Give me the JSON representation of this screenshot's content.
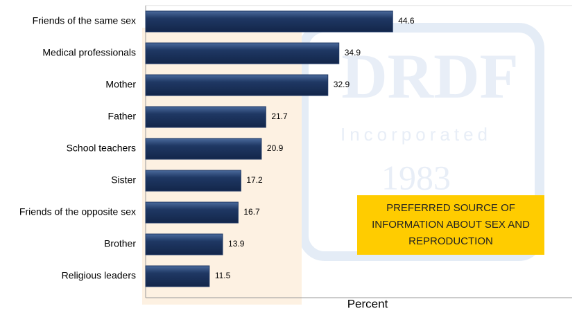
{
  "chart_data": {
    "type": "barh",
    "categories": [
      "Friends of the same sex",
      "Medical professionals",
      "Mother",
      "Father",
      "School teachers",
      "Sister",
      "Friends of the opposite sex",
      "Brother",
      "Religious leaders"
    ],
    "values": [
      44.6,
      34.9,
      32.9,
      21.7,
      20.9,
      17.2,
      16.7,
      13.9,
      11.5
    ],
    "color": "#1f3864",
    "xlim": [
      0,
      77
    ],
    "xlabel": "Percent",
    "annotation": [
      "PREFERRED SOURCE OF",
      "INFORMATION  ABOUT SEX AND",
      "REPRODUCTION"
    ],
    "watermark": [
      "DRDF",
      "Incorporated",
      "1983"
    ]
  }
}
